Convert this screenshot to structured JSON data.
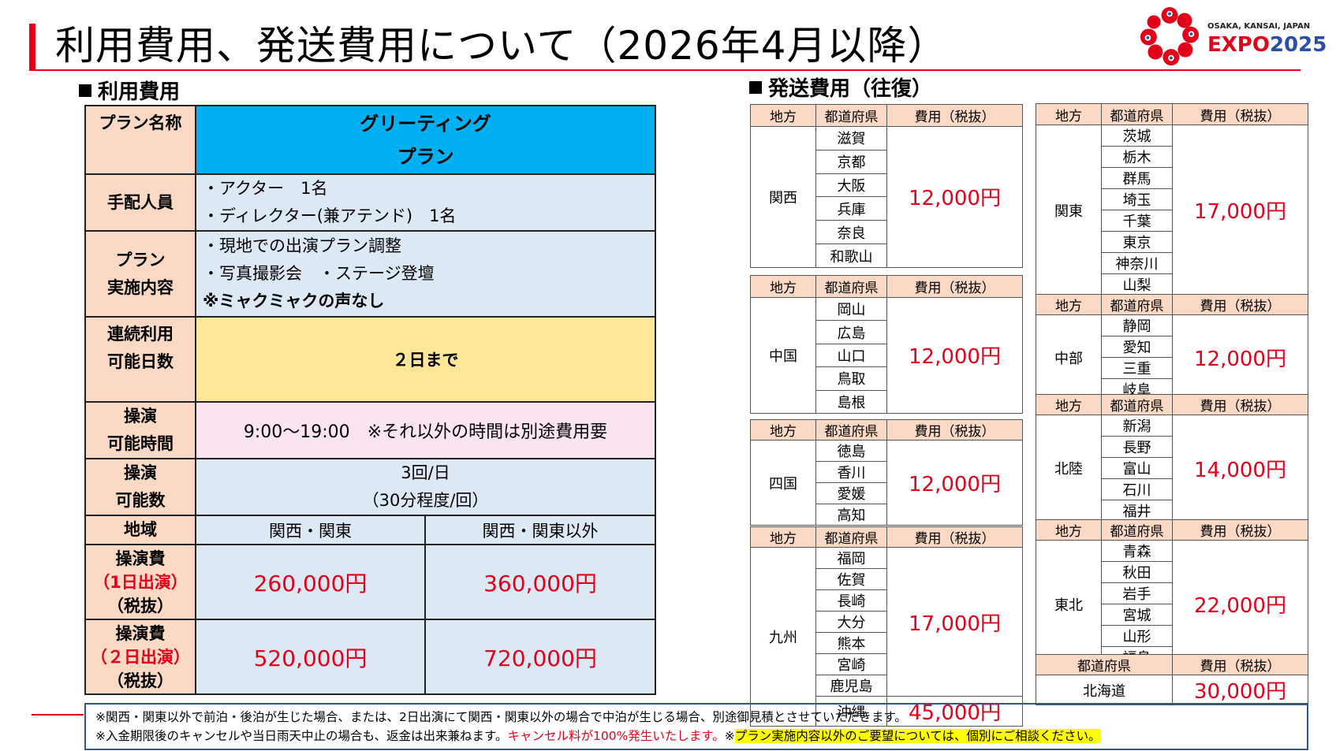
{
  "title": "利用費用、発送費用について（2026年4月以降）",
  "logo": {
    "sub": "OSAKA, KANSAI, JAPAN",
    "main": "EXPO",
    "year": "2025"
  },
  "usage": {
    "heading": "利用費用",
    "plan_label": "プラン名称",
    "plan_name": [
      "グリーティング",
      "プラン"
    ],
    "staff_label": "手配人員",
    "staff": [
      "・アクター　1名",
      "・ディレクター(兼アテンド)　1名"
    ],
    "content_label": [
      "プラン",
      "実施内容"
    ],
    "content": [
      "・現地での出演プラン調整",
      "・写真撮影会　・ステージ登壇",
      "※ミャクミャクの声なし"
    ],
    "days_label": [
      "連続利用",
      "可能日数"
    ],
    "days": "２日まで",
    "hours_label": [
      "操演",
      "可能時間"
    ],
    "hours": "9:00～19:00　※それ以外の時間は別途費用要",
    "count_label": [
      "操演",
      "可能数"
    ],
    "count": [
      "3回/日",
      "（30分程度/回）"
    ],
    "region_label": "地域",
    "region_a": "関西・関東",
    "region_b": "関西・関東以外",
    "fee1_label": [
      "操演費",
      "（1日出演）",
      "（税抜）"
    ],
    "fee1_a": "260,000円",
    "fee1_b": "360,000円",
    "fee2_label": [
      "操演費",
      "（２日出演）",
      "（税抜）"
    ],
    "fee2_a": "520,000円",
    "fee2_b": "720,000円"
  },
  "shipping": {
    "heading": "発送費用（往復）",
    "h_region": "地方",
    "h_pref": "都道府県",
    "h_cost": "費用（税抜）",
    "kansai": {
      "region": "関西",
      "prefs": [
        "滋賀",
        "京都",
        "大阪",
        "兵庫",
        "奈良",
        "和歌山"
      ],
      "price": "12,000円"
    },
    "chugoku": {
      "region": "中国",
      "prefs": [
        "岡山",
        "広島",
        "山口",
        "鳥取",
        "島根"
      ],
      "price": "12,000円"
    },
    "shikoku": {
      "region": "四国",
      "prefs": [
        "徳島",
        "香川",
        "愛媛",
        "高知"
      ],
      "price": "12,000円"
    },
    "kyushu": {
      "region": "九州",
      "prefs": [
        "福岡",
        "佐賀",
        "長崎",
        "大分",
        "熊本",
        "宮崎",
        "鹿児島"
      ],
      "price": "17,000円",
      "okinawa": "沖縄",
      "okinawa_price": "45,000円"
    },
    "kanto": {
      "region": "関東",
      "prefs": [
        "茨城",
        "栃木",
        "群馬",
        "埼玉",
        "千葉",
        "東京",
        "神奈川",
        "山梨"
      ],
      "price": "17,000円"
    },
    "chubu": {
      "region": "中部",
      "prefs": [
        "静岡",
        "愛知",
        "三重",
        "岐阜"
      ],
      "price": "12,000円"
    },
    "hokuriku": {
      "region": "北陸",
      "prefs": [
        "新潟",
        "長野",
        "富山",
        "石川",
        "福井"
      ],
      "price": "14,000円"
    },
    "tohoku": {
      "region": "東北",
      "prefs": [
        "青森",
        "秋田",
        "岩手",
        "宮城",
        "山形",
        "福島"
      ],
      "price": "22,000円"
    },
    "hokkaido": {
      "pref": "北海道",
      "price": "30,000円"
    }
  },
  "notes": {
    "line1": "※関西・関東以外で前泊・後泊が生じた場合、または、2日出演にて関西・関東以外の場合で中泊が生じる場合、別途御見積とさせていただきます。",
    "line2a": "※入金期限後のキャンセルや当日雨天中止の場合も、返金は出来兼ねます。",
    "line2b": "キャンセル料が100%発生いたします。",
    "line2c": "※",
    "line2d": "プラン実施内容以外のご要望については、個別にご相談ください。"
  },
  "colors": {
    "accent": "#e2001a",
    "plan_header": "#00b0f0",
    "label_bg": "#fbd9c4",
    "cell_blue": "#dce9f5",
    "days_bg": "#ffe699",
    "hours_bg": "#fde4f2"
  }
}
